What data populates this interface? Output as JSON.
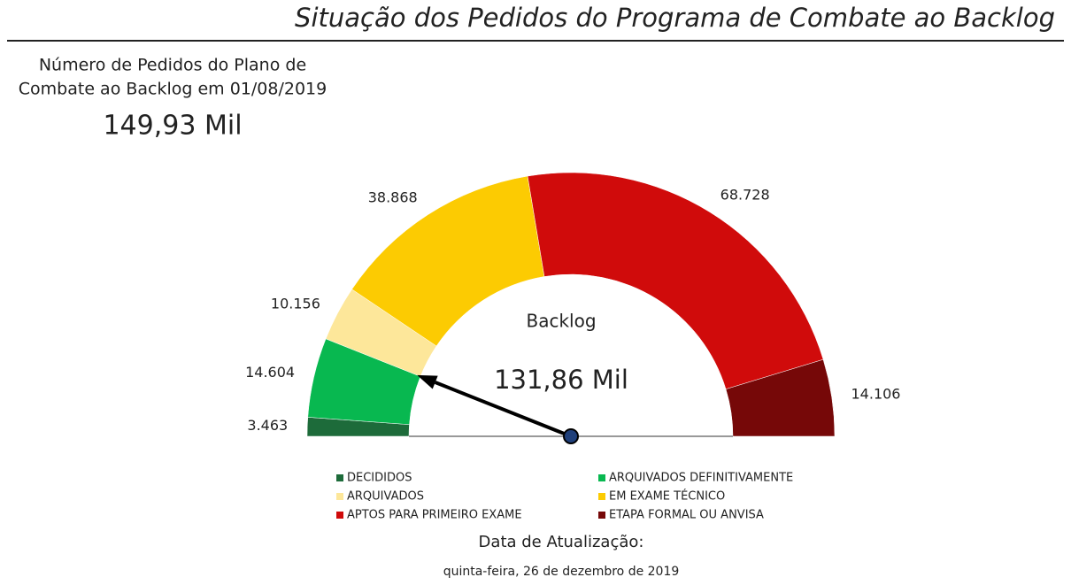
{
  "header": {
    "title": "Situação dos Pedidos do Programa de Combate ao Backlog"
  },
  "kpi": {
    "label_line1": "Número de Pedidos do Plano de",
    "label_line2": "Combate ao Backlog em 01/08/2019",
    "value": "149,93 Mil"
  },
  "chart_data": {
    "type": "gauge",
    "categories": [
      "DECIDIDOS",
      "ARQUIVADOS DEFINITIVAMENTE",
      "ARQUIVADOS",
      "EM EXAME TÉCNICO",
      "APTOS PARA PRIMEIRO EXAME",
      "ETAPA FORMAL OU ANVISA"
    ],
    "values": [
      3463,
      14604,
      10156,
      38868,
      68728,
      14106
    ],
    "value_labels": [
      "3.463",
      "14.604",
      "10.156",
      "38.868",
      "68.728",
      "14.106"
    ],
    "colors": [
      "#1d6b3a",
      "#08b850",
      "#fde79a",
      "#fccb02",
      "#d00b0b",
      "#760808"
    ],
    "center_title": "Backlog",
    "center_value": 131858,
    "center_value_label": "131,86 Mil"
  },
  "footer": {
    "label": "Data de Atualização:",
    "date": "quinta-feira, 26 de dezembro de 2019"
  }
}
